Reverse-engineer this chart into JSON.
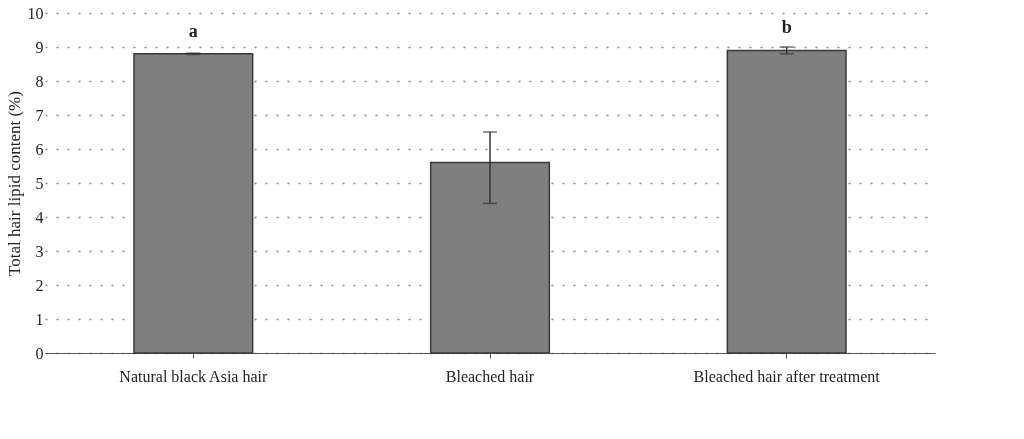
{
  "chart_data": {
    "type": "bar",
    "ylabel": "Total hair lipid content (%)",
    "categories": [
      "Natural black Asia hair",
      "Bleached hair",
      "Bleached hair after treatment"
    ],
    "values": [
      8.8,
      5.6,
      8.9
    ],
    "errors": [
      0.02,
      [
        4.4,
        6.5
      ],
      0.1
    ],
    "color": "#7f7f7f",
    "ylim": [
      0,
      10
    ],
    "yticks": [
      0,
      1,
      2,
      3,
      4,
      5,
      6,
      7,
      8,
      9,
      10
    ],
    "grid": "y",
    "annotations": [
      {
        "text": "a",
        "x": "Natural black Asia hair",
        "y": 8.8
      },
      {
        "text": "b",
        "x": "Bleached hair after treatment",
        "y": 8.9
      }
    ]
  }
}
